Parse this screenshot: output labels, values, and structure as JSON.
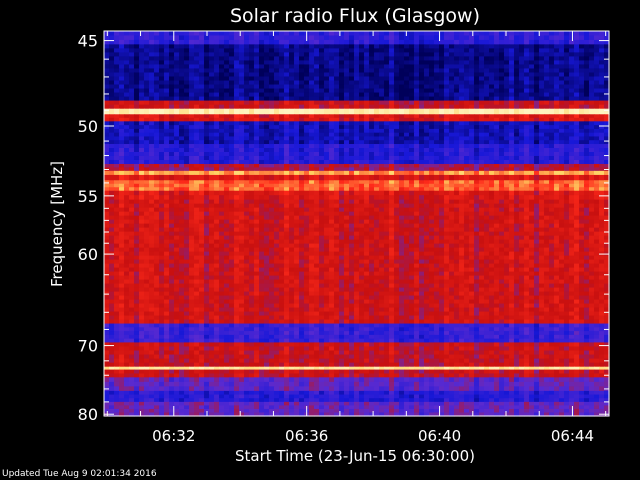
{
  "chart_data": {
    "type": "heatmap",
    "title": "Solar radio Flux (Glasgow)",
    "xlabel": "Start Time (23-Jun-15 06:30:00)",
    "ylabel": "Frequency [MHz]",
    "x_ticks": [
      "06:32",
      "06:36",
      "06:40",
      "06:44"
    ],
    "x_tick_minutes": [
      2,
      6,
      10,
      14
    ],
    "xlim_minutes": [
      -0.1,
      15.1
    ],
    "y_ticks": [
      45,
      50,
      55,
      60,
      70,
      80
    ],
    "ylim": [
      44.5,
      80.3
    ],
    "grid": false,
    "colormap": [
      "#00005a",
      "#1818d8",
      "#5a2ad0",
      "#c81010",
      "#ff2a1a",
      "#ffd060",
      "#fff4c0"
    ],
    "bands_mhz_level": [
      [
        44.5,
        45.2,
        0.22
      ],
      [
        45.2,
        48.4,
        0.06
      ],
      [
        48.4,
        48.9,
        0.5
      ],
      [
        48.9,
        49.25,
        0.97
      ],
      [
        49.25,
        49.7,
        0.55
      ],
      [
        49.7,
        51.2,
        0.12
      ],
      [
        51.2,
        52.6,
        0.2
      ],
      [
        52.6,
        53.1,
        0.45
      ],
      [
        53.1,
        53.4,
        0.78
      ],
      [
        53.4,
        53.8,
        0.55
      ],
      [
        53.8,
        54.6,
        0.72
      ],
      [
        54.6,
        55.3,
        0.55
      ],
      [
        55.3,
        67.3,
        0.52
      ],
      [
        67.3,
        69.6,
        0.24
      ],
      [
        69.6,
        72.8,
        0.5
      ],
      [
        72.8,
        73.2,
        0.93
      ],
      [
        73.2,
        74.3,
        0.5
      ],
      [
        74.3,
        76.3,
        0.33
      ],
      [
        76.3,
        78.0,
        0.2
      ],
      [
        78.0,
        80.3,
        0.34
      ]
    ]
  },
  "footer": {
    "text": "Updated Tue Aug  9 02:01:34 2016"
  }
}
